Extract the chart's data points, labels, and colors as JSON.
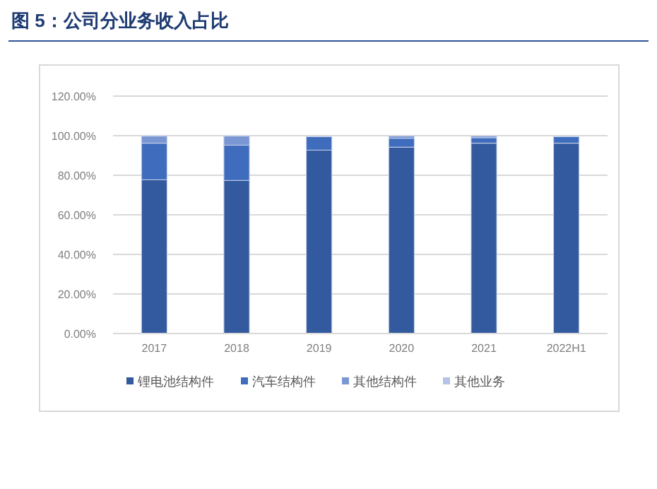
{
  "chart_data": {
    "type": "bar",
    "title": "图 5：公司分业务收入占比",
    "stacked": true,
    "categories": [
      "2017",
      "2018",
      "2019",
      "2020",
      "2021",
      "2022H1"
    ],
    "series": [
      {
        "name": "锂电池结构件",
        "color": "#335a9e",
        "values": [
          77.7,
          77.4,
          92.7,
          94.2,
          96.2,
          96.2
        ]
      },
      {
        "name": "汽车结构件",
        "color": "#3f6cbd",
        "values": [
          18.5,
          17.8,
          6.8,
          4.5,
          2.8,
          3.3
        ]
      },
      {
        "name": "其他结构件",
        "color": "#7a96d3",
        "values": [
          3.6,
          4.6,
          null,
          1.1,
          0.8,
          null
        ]
      },
      {
        "name": "其他业务",
        "color": "#b4c3e6",
        "values": [
          0.2,
          0.2,
          0.2,
          null,
          null,
          0.2
        ]
      }
    ],
    "ylim": [
      0,
      120
    ],
    "yticks": [
      {
        "value": 0,
        "label": "0.00%"
      },
      {
        "value": 20,
        "label": "20.00%"
      },
      {
        "value": 40,
        "label": "40.00%"
      },
      {
        "value": 60,
        "label": "60.00%"
      },
      {
        "value": 80,
        "label": "80.00%"
      },
      {
        "value": 100,
        "label": "100.00%"
      },
      {
        "value": 120,
        "label": "120.00%"
      }
    ],
    "grid": "y",
    "legend": "bottom"
  }
}
